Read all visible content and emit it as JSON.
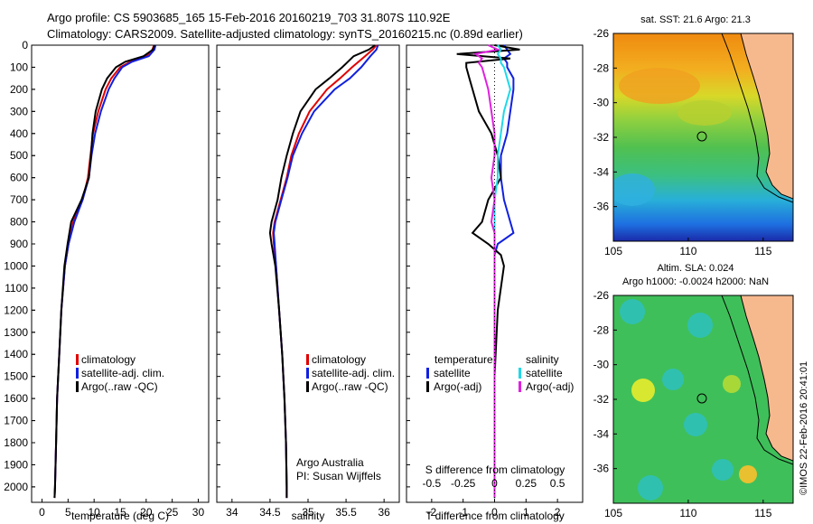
{
  "header": {
    "line1": "Argo profile: CS 5903685_165 15-Feb-2016 20160219_703 31.807S 110.92E",
    "line2": "Climatology: CARS2009. Satellite-adjusted climatology: synTS_20160215.nc (0.89d earlier)"
  },
  "colors": {
    "climatology": "#e00000",
    "satellite": "#1020e0",
    "argo": "#000000",
    "satellite_salinity": "#20d8e8",
    "argo_salinity": "#e020e0",
    "land": "#f6b98e"
  },
  "chart_data": [
    {
      "type": "line",
      "name": "temperature-profile",
      "xlabel": "temperature (deg C)",
      "xlim": [
        -2,
        32
      ],
      "xticks": [
        0,
        5,
        10,
        15,
        20,
        25,
        30
      ],
      "ylim": [
        2070,
        0
      ],
      "yticks": [
        0,
        100,
        200,
        300,
        400,
        500,
        600,
        700,
        800,
        900,
        1000,
        1100,
        1200,
        1300,
        1400,
        1500,
        1600,
        1700,
        1800,
        1900,
        2000
      ],
      "legend": [
        "climatology",
        "satellite-adj. clim.",
        "Argo(..raw -QC)"
      ],
      "depth": [
        0,
        20,
        50,
        75,
        100,
        150,
        200,
        300,
        400,
        500,
        600,
        700,
        800,
        900,
        1000,
        1200,
        1400,
        1600,
        1800,
        2000,
        2050
      ],
      "series": [
        {
          "name": "climatology",
          "values": [
            21.5,
            21.2,
            20.0,
            17.0,
            15.0,
            13.3,
            12.2,
            10.8,
            9.8,
            9.3,
            8.8,
            7.8,
            6.0,
            5.1,
            4.4,
            3.7,
            3.3,
            2.9,
            2.7,
            2.5,
            2.4
          ]
        },
        {
          "name": "satellite-adj. clim.",
          "values": [
            21.8,
            21.6,
            20.5,
            17.3,
            15.4,
            13.9,
            12.8,
            11.3,
            10.2,
            9.5,
            9.0,
            7.8,
            6.2,
            5.1,
            4.4,
            3.7,
            3.3,
            2.9,
            2.7,
            2.5,
            2.4
          ]
        },
        {
          "name": "Argo(..raw -QC)",
          "values": [
            21.6,
            21.3,
            19.5,
            16.0,
            14.2,
            12.5,
            11.5,
            10.3,
            9.7,
            9.4,
            9.0,
            7.6,
            5.6,
            4.9,
            4.3,
            3.7,
            3.3,
            2.9,
            2.7,
            2.5,
            2.4
          ]
        }
      ]
    },
    {
      "type": "line",
      "name": "salinity-profile",
      "xlabel": "salinity",
      "xlim": [
        33.8,
        36.2
      ],
      "xticks": [
        34,
        34.5,
        35,
        35.5,
        36
      ],
      "ylim": [
        2070,
        0
      ],
      "legend": [
        "climatology",
        "satellite-adj. clim.",
        "Argo(..raw -QC)"
      ],
      "annotation": [
        "Argo Australia",
        "PI: Susan Wijffels"
      ],
      "depth": [
        0,
        20,
        50,
        100,
        150,
        200,
        300,
        400,
        500,
        600,
        700,
        800,
        850,
        900,
        1000,
        1200,
        1400,
        1600,
        1800,
        2000,
        2050
      ],
      "series": [
        {
          "name": "climatology",
          "values": [
            35.9,
            35.85,
            35.75,
            35.58,
            35.42,
            35.25,
            35.02,
            34.88,
            34.78,
            34.72,
            34.64,
            34.56,
            34.54,
            34.55,
            34.58,
            34.62,
            34.66,
            34.69,
            34.71,
            34.72,
            34.72
          ]
        },
        {
          "name": "satellite-adj. clim.",
          "values": [
            35.92,
            35.9,
            35.82,
            35.7,
            35.55,
            35.35,
            35.08,
            34.92,
            34.8,
            34.73,
            34.65,
            34.57,
            34.55,
            34.56,
            34.58,
            34.62,
            34.66,
            34.69,
            34.71,
            34.72,
            34.72
          ]
        },
        {
          "name": "Argo(..raw -QC)",
          "values": [
            35.88,
            35.8,
            35.6,
            35.45,
            35.28,
            35.1,
            34.9,
            34.8,
            34.72,
            34.65,
            34.6,
            34.52,
            34.5,
            34.52,
            34.57,
            34.62,
            34.66,
            34.69,
            34.71,
            34.72,
            34.72
          ]
        }
      ]
    },
    {
      "type": "line",
      "name": "difference-profile",
      "xlabel": "T difference from climatology",
      "xlabel_top": "S difference from climatology",
      "xlim": [
        -2.8,
        2.8
      ],
      "xticks": [
        -2,
        -1,
        0,
        1,
        2
      ],
      "top_ticks": [
        "-0.5",
        "-0.25",
        "0",
        "0.25",
        "0.5"
      ],
      "ylim": [
        2070,
        0
      ],
      "legend_title_t": "temperature",
      "legend_title_s": "salinity",
      "legend": [
        "satellite",
        "Argo(-adj)",
        "satellite",
        "Argo(-adj)"
      ],
      "depth": [
        0,
        20,
        40,
        60,
        80,
        100,
        150,
        200,
        300,
        400,
        500,
        600,
        700,
        800,
        850,
        900,
        950,
        1000,
        1200,
        1500,
        1800,
        2000,
        2050
      ],
      "series": [
        {
          "name": "T satellite",
          "values": [
            0.3,
            0.4,
            0.5,
            0.3,
            0.4,
            0.4,
            0.6,
            0.6,
            0.5,
            0.4,
            0.2,
            0.2,
            0.3,
            0.5,
            0.6,
            0.1,
            0.0,
            0.0,
            0.0,
            0.0,
            0.0,
            0.0,
            0.0
          ]
        },
        {
          "name": "T Argo(-adj)",
          "values": [
            0.0,
            0.8,
            -1.2,
            0.5,
            -0.9,
            -0.9,
            -0.8,
            -0.7,
            -0.5,
            -0.1,
            0.1,
            0.2,
            -0.2,
            -0.4,
            -0.7,
            -0.2,
            0.2,
            0.3,
            0.1,
            0.0,
            0.0,
            0.0,
            0.0
          ]
        },
        {
          "name": "S satellite",
          "values": [
            0.1,
            0.2,
            0.1,
            0.2,
            0.2,
            0.3,
            0.4,
            0.5,
            0.3,
            0.2,
            0.1,
            0.1,
            0.0,
            0.0,
            0.0,
            0.0,
            0.0,
            0.0,
            0.0,
            0.0,
            0.0,
            0.0,
            0.0
          ]
        },
        {
          "name": "S Argo(-adj)",
          "values": [
            -0.2,
            0.1,
            -0.6,
            -0.4,
            -0.5,
            -0.4,
            -0.3,
            -0.2,
            -0.1,
            0.0,
            0.0,
            -0.1,
            0.0,
            -0.1,
            0.0,
            0.0,
            0.0,
            0.0,
            0.0,
            0.0,
            0.0,
            0.0,
            0.0
          ]
        }
      ]
    },
    {
      "type": "heatmap",
      "name": "sst-map",
      "title": "sat. SST: 21.6  Argo: 21.3",
      "xlim": [
        105,
        117
      ],
      "ylim": [
        -38,
        -26
      ],
      "xticks": [
        105,
        110,
        115
      ],
      "yticks": [
        -26,
        -28,
        -30,
        -32,
        -34,
        -36
      ],
      "profile_location": [
        110.92,
        -31.807
      ]
    },
    {
      "type": "heatmap",
      "name": "sla-map",
      "title_line1": "Altim. SLA: 0.024",
      "title_line2": "Argo h1000: -0.0024  h2000: NaN",
      "xlim": [
        105,
        117
      ],
      "ylim": [
        -38,
        -26
      ],
      "xticks": [
        105,
        110,
        115
      ],
      "yticks": [
        -26,
        -28,
        -30,
        -32,
        -34,
        -36
      ],
      "profile_location": [
        110.92,
        -31.807
      ]
    }
  ],
  "footer": {
    "credit": "©IMOS 22-Feb-2016 20:41:01"
  }
}
